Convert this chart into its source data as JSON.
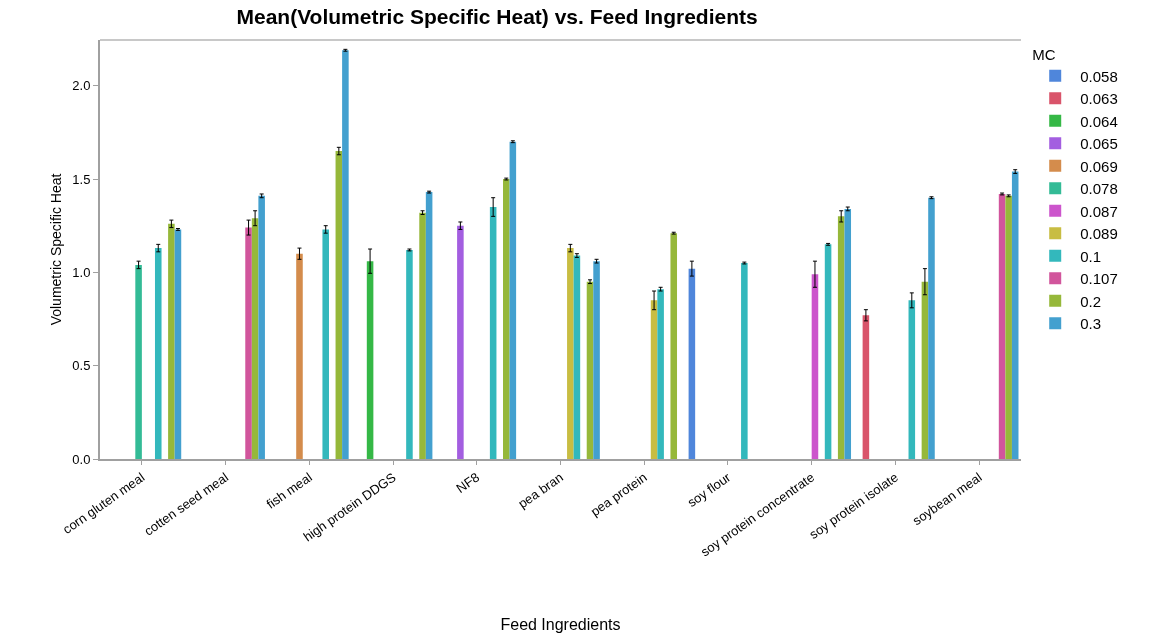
{
  "chart_data": {
    "type": "bar",
    "title": "Mean(Volumetric Specific Heat) vs. Feed Ingredients",
    "xlabel": "Feed Ingredients",
    "ylabel": "Volumetric Specific Heat",
    "legend_title": "MC",
    "legend": "right",
    "grid": false,
    "categories": [
      "corn gluten meal",
      "cotten seed meal",
      "fish meal",
      "high protein DDGS",
      "NF8",
      "pea bran",
      "pea protein",
      "soy flour",
      "soy protein concentrate",
      "soy protein isolate",
      "soybean meal"
    ],
    "ylim": [
      0,
      2.245
    ],
    "yticks": [
      {
        "value": 0,
        "label": "0.0"
      },
      {
        "value": 0.5,
        "label": "0.5"
      },
      {
        "value": 1,
        "label": "1.0"
      },
      {
        "value": 1.5,
        "label": "1.5"
      },
      {
        "value": 2,
        "label": "2.0"
      }
    ],
    "series": [
      {
        "name": "0.058",
        "color": "#4f86db",
        "values": [
          null,
          null,
          null,
          null,
          null,
          null,
          null,
          1.02,
          null,
          null,
          null
        ],
        "errors": [
          null,
          null,
          null,
          null,
          null,
          null,
          null,
          0.04,
          null,
          null,
          null
        ]
      },
      {
        "name": "0.063",
        "color": "#d9546a",
        "values": [
          null,
          null,
          null,
          null,
          null,
          null,
          null,
          null,
          null,
          0.77,
          null
        ],
        "errors": [
          null,
          null,
          null,
          null,
          null,
          null,
          null,
          null,
          null,
          0.03,
          null
        ]
      },
      {
        "name": "0.064",
        "color": "#35b846",
        "values": [
          null,
          null,
          null,
          1.06,
          null,
          null,
          null,
          null,
          null,
          null,
          null
        ],
        "errors": [
          null,
          null,
          null,
          0.065,
          null,
          null,
          null,
          null,
          null,
          null,
          null
        ]
      },
      {
        "name": "0.065",
        "color": "#a35ee0",
        "values": [
          null,
          null,
          null,
          null,
          1.25,
          null,
          null,
          null,
          null,
          null,
          null
        ],
        "errors": [
          null,
          null,
          null,
          null,
          0.02,
          null,
          null,
          null,
          null,
          null,
          null
        ]
      },
      {
        "name": "0.069",
        "color": "#d48c4c",
        "values": [
          null,
          null,
          1.1,
          null,
          null,
          null,
          null,
          null,
          null,
          null,
          null
        ],
        "errors": [
          null,
          null,
          0.03,
          null,
          null,
          null,
          null,
          null,
          null,
          null,
          null
        ]
      },
      {
        "name": "0.078",
        "color": "#33bb96",
        "values": [
          1.04,
          null,
          null,
          null,
          null,
          null,
          null,
          null,
          null,
          null,
          null
        ],
        "errors": [
          0.02,
          null,
          null,
          null,
          null,
          null,
          null,
          null,
          null,
          null,
          null
        ]
      },
      {
        "name": "0.087",
        "color": "#cc55cc",
        "values": [
          null,
          null,
          null,
          null,
          null,
          null,
          null,
          null,
          0.99,
          null,
          null
        ],
        "errors": [
          null,
          null,
          null,
          null,
          null,
          null,
          null,
          null,
          0.07,
          null,
          null
        ]
      },
      {
        "name": "0.089",
        "color": "#c8bd42",
        "values": [
          null,
          null,
          null,
          null,
          null,
          1.13,
          0.85,
          null,
          null,
          null,
          null
        ],
        "errors": [
          null,
          null,
          null,
          null,
          null,
          0.02,
          0.05,
          null,
          null,
          null,
          null
        ]
      },
      {
        "name": "0.1",
        "color": "#33b8bc",
        "values": [
          1.13,
          null,
          1.23,
          1.12,
          1.35,
          1.09,
          0.91,
          1.05,
          1.15,
          0.85,
          null
        ],
        "errors": [
          0.02,
          null,
          0.02,
          0.005,
          0.05,
          0.01,
          0.01,
          0.005,
          0.005,
          0.04,
          null
        ]
      },
      {
        "name": "0.107",
        "color": "#d1559c",
        "values": [
          null,
          1.24,
          null,
          null,
          null,
          null,
          null,
          null,
          null,
          null,
          1.42
        ],
        "errors": [
          null,
          0.04,
          null,
          null,
          null,
          null,
          null,
          null,
          null,
          null,
          0.005
        ]
      },
      {
        "name": "0.2",
        "color": "#96b83a",
        "values": [
          1.26,
          1.29,
          1.65,
          1.32,
          1.5,
          0.95,
          1.21,
          null,
          1.3,
          0.95,
          1.41
        ],
        "errors": [
          0.02,
          0.04,
          0.02,
          0.01,
          0.005,
          0.01,
          0.005,
          null,
          0.03,
          0.07,
          0.005
        ]
      },
      {
        "name": "0.3",
        "color": "#43a0cf",
        "values": [
          1.23,
          1.41,
          2.19,
          1.43,
          1.7,
          1.06,
          null,
          null,
          1.34,
          1.4,
          1.54
        ],
        "errors": [
          0.005,
          0.01,
          0.005,
          0.005,
          0.005,
          0.01,
          null,
          null,
          0.01,
          0.005,
          0.01
        ]
      }
    ]
  }
}
